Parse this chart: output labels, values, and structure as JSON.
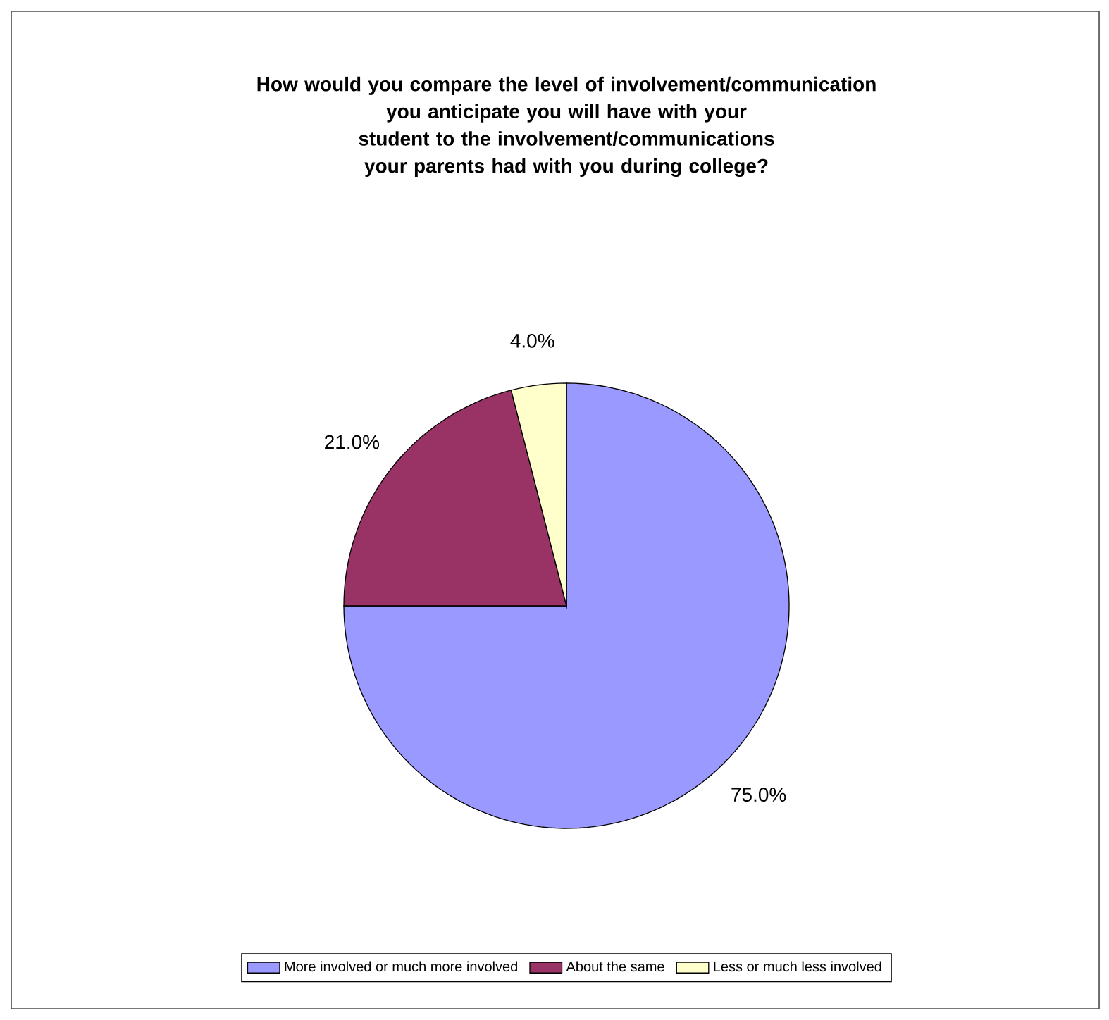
{
  "chart_data": {
    "type": "pie",
    "title": "How would you compare the level of involvement/communication you anticipate you will have with your student to the involvement/communications your parents had with you during college?",
    "categories": [
      "More involved or much more involved",
      "About the same",
      "Less or much less involved"
    ],
    "values": [
      75,
      21,
      4
    ],
    "value_labels": [
      "75.0%",
      "21.0%",
      "4.0%"
    ],
    "colors": [
      "#9999ff",
      "#993366",
      "#ffffcc"
    ],
    "legend": "bottom"
  }
}
